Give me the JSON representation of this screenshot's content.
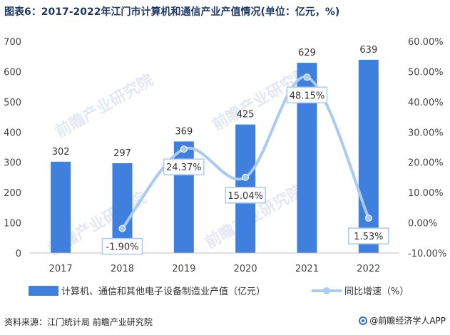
{
  "title": "图表6：2017-2022年江门市计算机和通信产业产值情况(单位：亿元，%)",
  "source": "资料来源：江门统计局 前瞻产业研究院",
  "brand": "@前瞻经济学人APP",
  "watermark": "前瞻产业研究院",
  "colors": {
    "bar": "#3f7fde",
    "line": "#a9cbf2",
    "title": "#1f3864"
  },
  "chart_data": {
    "type": "bar",
    "categories": [
      "2017",
      "2018",
      "2019",
      "2020",
      "2021",
      "2022"
    ],
    "series": [
      {
        "name": "计算机、通信和其他电子设备制造业产值（亿元）",
        "type": "bar",
        "axis": "left",
        "values": [
          302,
          297,
          369,
          425,
          629,
          639
        ]
      },
      {
        "name": "同比增速（%）",
        "type": "line",
        "axis": "right",
        "values": [
          null,
          -1.9,
          24.37,
          15.04,
          48.15,
          1.53
        ],
        "labels": [
          "",
          "-1.90%",
          "24.37%",
          "15.04%",
          "48.15%",
          "1.53%"
        ]
      }
    ],
    "y_left": {
      "range": [
        0,
        700
      ],
      "ticks": [
        "0",
        "100",
        "200",
        "300",
        "400",
        "500",
        "600",
        "700"
      ]
    },
    "y_right": {
      "range": [
        -10,
        60
      ],
      "ticks": [
        "-10.00%",
        "0.00%",
        "10.00%",
        "20.00%",
        "30.00%",
        "40.00%",
        "50.00%",
        "60.00%"
      ]
    },
    "legend_position": "bottom",
    "grid": false
  }
}
